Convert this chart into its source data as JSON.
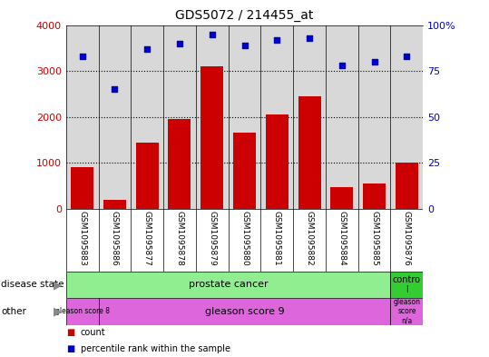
{
  "title": "GDS5072 / 214455_at",
  "samples": [
    "GSM1095883",
    "GSM1095886",
    "GSM1095877",
    "GSM1095878",
    "GSM1095879",
    "GSM1095880",
    "GSM1095881",
    "GSM1095882",
    "GSM1095884",
    "GSM1095885",
    "GSM1095876"
  ],
  "counts": [
    900,
    200,
    1450,
    1950,
    3100,
    1650,
    2050,
    2450,
    480,
    560,
    1000
  ],
  "percentile_ranks": [
    83,
    65,
    87,
    90,
    95,
    89,
    92,
    93,
    78,
    80,
    83
  ],
  "bar_color": "#cc0000",
  "dot_color": "#0000cc",
  "ylim_left": [
    0,
    4000
  ],
  "ylim_right": [
    0,
    100
  ],
  "yticks_left": [
    0,
    1000,
    2000,
    3000,
    4000
  ],
  "yticks_right": [
    0,
    25,
    50,
    75,
    100
  ],
  "background_color": "#ffffff",
  "plot_bg_color": "#d8d8d8",
  "label_bg_color": "#c8c8c8",
  "prostate_color": "#90EE90",
  "control_color": "#33cc33",
  "gleason_color": "#dd66dd"
}
